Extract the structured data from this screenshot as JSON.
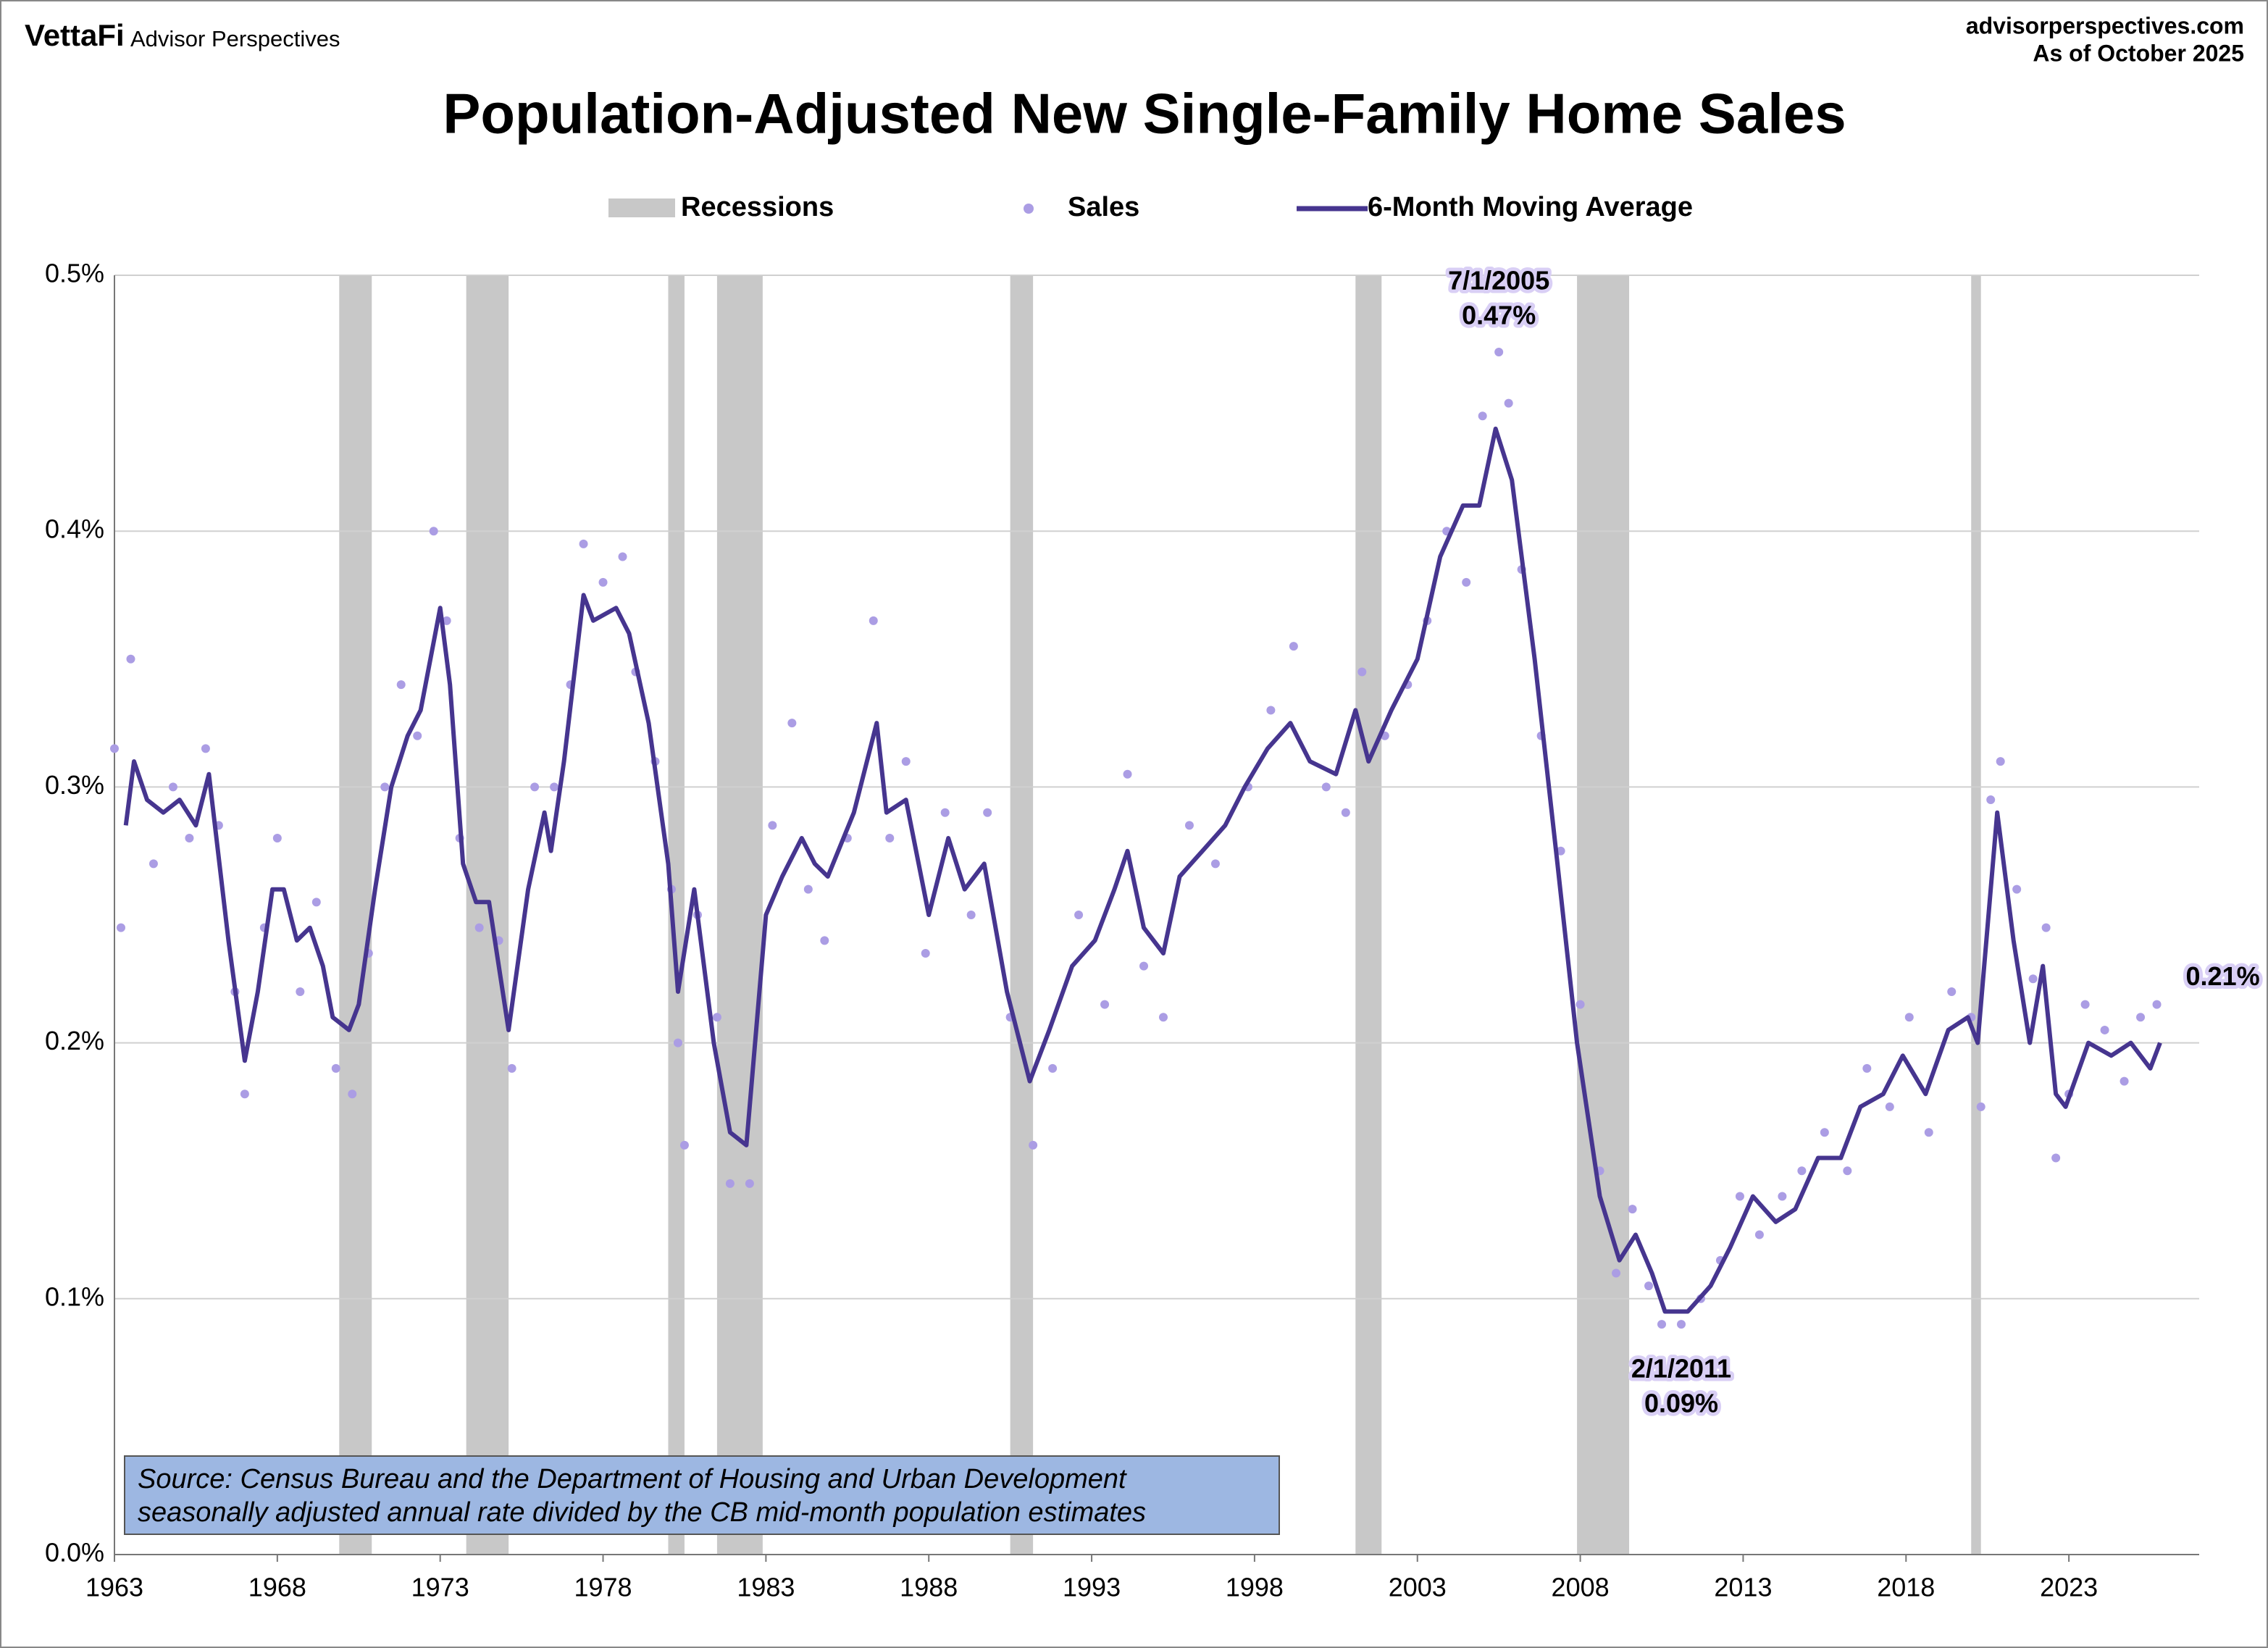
{
  "header": {
    "brand": "VettaFi",
    "publisher": "Advisor Perspectives",
    "site": "advisorperspectives.com",
    "as_of": "As of October 2025"
  },
  "chart_data": {
    "type": "line",
    "title": "Population-Adjusted New Single-Family Home Sales",
    "xlim": [
      1963,
      2027
    ],
    "xticks": [
      1963,
      1968,
      1973,
      1978,
      1983,
      1988,
      1993,
      1998,
      2003,
      2008,
      2013,
      2018,
      2023
    ],
    "ylim": [
      0,
      0.5
    ],
    "yticks": [
      {
        "value": 0,
        "label": "0.0%"
      },
      {
        "value": 0.1,
        "label": "0.1%"
      },
      {
        "value": 0.2,
        "label": "0.2%"
      },
      {
        "value": 0.3,
        "label": "0.3%"
      },
      {
        "value": 0.4,
        "label": "0.4%"
      },
      {
        "value": 0.5,
        "label": "0.5%"
      }
    ],
    "grid": true,
    "recessions": {
      "name": "Recessions",
      "color": "#c8c8c8",
      "periods": [
        [
          1969.9,
          1970.9
        ],
        [
          1973.8,
          1975.1
        ],
        [
          1980.0,
          1980.5
        ],
        [
          1981.5,
          1982.9
        ],
        [
          1990.5,
          1991.2
        ],
        [
          2001.1,
          2001.9
        ],
        [
          2007.9,
          2009.5
        ],
        [
          2020.0,
          2020.3
        ]
      ]
    },
    "series": [
      {
        "name": "Sales",
        "type": "scatter",
        "color": "#ab9de4",
        "x": [
          1963.0,
          1963.2,
          1963.5,
          1964.2,
          1964.8,
          1965.3,
          1965.8,
          1966.2,
          1966.7,
          1967.0,
          1967.6,
          1968.0,
          1968.7,
          1969.2,
          1969.8,
          1970.3,
          1970.8,
          1971.3,
          1971.8,
          1972.3,
          1972.8,
          1973.2,
          1973.6,
          1974.2,
          1974.8,
          1975.2,
          1975.9,
          1976.5,
          1977.0,
          1977.4,
          1978.0,
          1978.6,
          1979.0,
          1979.6,
          1980.1,
          1980.3,
          1980.5,
          1980.9,
          1981.5,
          1981.9,
          1982.5,
          1983.2,
          1983.8,
          1984.3,
          1984.8,
          1985.5,
          1986.3,
          1986.8,
          1987.3,
          1987.9,
          1988.5,
          1989.3,
          1989.8,
          1990.5,
          1991.2,
          1991.8,
          1992.6,
          1993.4,
          1994.1,
          1994.6,
          1995.2,
          1996.0,
          1996.8,
          1997.8,
          1998.5,
          1999.2,
          2000.2,
          2000.8,
          2001.3,
          2002.0,
          2002.7,
          2003.3,
          2003.9,
          2004.5,
          2005.0,
          2005.5,
          2005.8,
          2006.2,
          2006.8,
          2007.4,
          2008.0,
          2008.6,
          2009.1,
          2009.6,
          2010.1,
          2010.5,
          2011.1,
          2011.7,
          2012.3,
          2012.9,
          2013.5,
          2014.2,
          2014.8,
          2015.5,
          2016.2,
          2016.8,
          2017.5,
          2018.1,
          2018.7,
          2019.4,
          2020.0,
          2020.3,
          2020.6,
          2020.9,
          2021.4,
          2021.9,
          2022.3,
          2022.6,
          2023.0,
          2023.5,
          2024.1,
          2024.7,
          2025.2,
          2025.7
        ],
        "values": [
          0.315,
          0.245,
          0.35,
          0.27,
          0.3,
          0.28,
          0.315,
          0.285,
          0.22,
          0.18,
          0.245,
          0.28,
          0.22,
          0.255,
          0.19,
          0.18,
          0.235,
          0.3,
          0.34,
          0.32,
          0.4,
          0.365,
          0.28,
          0.245,
          0.24,
          0.19,
          0.3,
          0.3,
          0.34,
          0.395,
          0.38,
          0.39,
          0.345,
          0.31,
          0.26,
          0.2,
          0.16,
          0.25,
          0.21,
          0.145,
          0.145,
          0.285,
          0.325,
          0.26,
          0.24,
          0.28,
          0.365,
          0.28,
          0.31,
          0.235,
          0.29,
          0.25,
          0.29,
          0.21,
          0.16,
          0.19,
          0.25,
          0.215,
          0.305,
          0.23,
          0.21,
          0.285,
          0.27,
          0.3,
          0.33,
          0.355,
          0.3,
          0.29,
          0.345,
          0.32,
          0.34,
          0.365,
          0.4,
          0.38,
          0.445,
          0.47,
          0.45,
          0.385,
          0.32,
          0.275,
          0.215,
          0.15,
          0.11,
          0.135,
          0.105,
          0.09,
          0.09,
          0.1,
          0.115,
          0.14,
          0.125,
          0.14,
          0.15,
          0.165,
          0.15,
          0.19,
          0.175,
          0.21,
          0.165,
          0.22,
          0.21,
          0.175,
          0.295,
          0.31,
          0.26,
          0.225,
          0.245,
          0.155,
          0.18,
          0.215,
          0.205,
          0.185,
          0.21,
          0.215
        ]
      },
      {
        "name": "6-Month Moving Average",
        "type": "line",
        "color": "#46358f",
        "x": [
          1963.35,
          1963.6,
          1964.0,
          1964.5,
          1965.0,
          1965.5,
          1965.9,
          1966.5,
          1967.0,
          1967.4,
          1967.85,
          1968.2,
          1968.6,
          1969.0,
          1969.4,
          1969.7,
          1970.2,
          1970.5,
          1971.0,
          1971.5,
          1972.0,
          1972.4,
          1973.0,
          1973.3,
          1973.7,
          1974.1,
          1974.5,
          1975.1,
          1975.7,
          1976.2,
          1976.4,
          1976.8,
          1977.4,
          1977.7,
          1978.4,
          1978.8,
          1979.4,
          1980.0,
          1980.3,
          1980.8,
          1981.4,
          1981.9,
          1982.4,
          1983.0,
          1983.5,
          1984.1,
          1984.5,
          1984.9,
          1985.7,
          1986.4,
          1986.7,
          1987.3,
          1988.0,
          1988.6,
          1989.1,
          1989.7,
          1990.4,
          1991.1,
          1991.7,
          1992.4,
          1993.1,
          1993.7,
          1994.1,
          1994.6,
          1995.2,
          1995.7,
          1996.4,
          1997.1,
          1997.7,
          1998.4,
          1999.1,
          1999.7,
          2000.5,
          2001.1,
          2001.5,
          2002.2,
          2003.0,
          2003.7,
          2004.4,
          2004.9,
          2005.4,
          2005.9,
          2006.6,
          2007.3,
          2007.9,
          2008.6,
          2009.2,
          2009.7,
          2010.2,
          2010.6,
          2011.3,
          2012.0,
          2012.6,
          2013.3,
          2014.0,
          2014.6,
          2015.3,
          2016.0,
          2016.6,
          2017.3,
          2017.9,
          2018.6,
          2019.3,
          2019.9,
          2020.2,
          2020.8,
          2021.3,
          2021.8,
          2022.2,
          2022.6,
          2022.9,
          2023.6,
          2024.3,
          2024.9,
          2025.5,
          2025.8
        ],
        "values": [
          0.285,
          0.31,
          0.295,
          0.29,
          0.295,
          0.285,
          0.305,
          0.24,
          0.193,
          0.22,
          0.26,
          0.26,
          0.24,
          0.245,
          0.23,
          0.21,
          0.205,
          0.215,
          0.26,
          0.3,
          0.32,
          0.33,
          0.37,
          0.34,
          0.27,
          0.255,
          0.255,
          0.205,
          0.26,
          0.29,
          0.275,
          0.31,
          0.375,
          0.365,
          0.37,
          0.36,
          0.325,
          0.27,
          0.22,
          0.26,
          0.2,
          0.165,
          0.16,
          0.25,
          0.265,
          0.28,
          0.27,
          0.265,
          0.29,
          0.325,
          0.29,
          0.295,
          0.25,
          0.28,
          0.26,
          0.27,
          0.22,
          0.185,
          0.205,
          0.23,
          0.24,
          0.26,
          0.275,
          0.245,
          0.235,
          0.265,
          0.275,
          0.285,
          0.3,
          0.315,
          0.325,
          0.31,
          0.305,
          0.33,
          0.31,
          0.33,
          0.35,
          0.39,
          0.41,
          0.41,
          0.44,
          0.42,
          0.35,
          0.27,
          0.2,
          0.14,
          0.115,
          0.125,
          0.11,
          0.095,
          0.095,
          0.105,
          0.12,
          0.14,
          0.13,
          0.135,
          0.155,
          0.155,
          0.175,
          0.18,
          0.195,
          0.18,
          0.205,
          0.21,
          0.2,
          0.29,
          0.24,
          0.2,
          0.23,
          0.18,
          0.175,
          0.2,
          0.195,
          0.2,
          0.19,
          0.2
        ]
      }
    ],
    "annotations": [
      {
        "label": "7/1/2005",
        "x": 2005.5,
        "value": 0.47,
        "value_label": "0.47%",
        "anchor": "above"
      },
      {
        "label": "2/1/2011",
        "x": 2011.1,
        "value": 0.09,
        "value_label": "0.09%",
        "anchor": "below"
      },
      {
        "x": 2025.7,
        "value": 0.21,
        "value_label": "0.21%",
        "anchor": "right"
      }
    ],
    "source": [
      "Source: Census Bureau and the Department of Housing and Urban Development",
      "seasonally adjusted annual rate divided by the CB mid-month population estimates"
    ]
  }
}
